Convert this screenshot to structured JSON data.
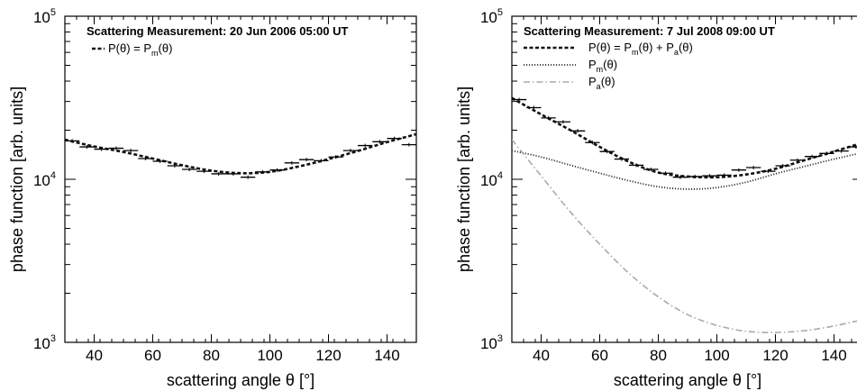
{
  "chart_data": [
    {
      "type": "scatter",
      "title": "Scattering Measurement: 20 Jun 2006 05:00 UT",
      "xlabel": "scattering angle θ [°]",
      "ylabel": "phase function [arb. units]",
      "xlim": [
        30,
        150
      ],
      "ylim": [
        1000,
        100000
      ],
      "yscale": "log",
      "xticks": [
        "40",
        "60",
        "80",
        "100",
        "120",
        "140"
      ],
      "yticks": [
        {
          "base": "10",
          "exp": "3"
        },
        {
          "base": "10",
          "exp": "4"
        },
        {
          "base": "10",
          "exp": "5"
        }
      ],
      "legend_position": "top-left",
      "grid": false,
      "points": {
        "x": [
          32.5,
          37.5,
          42.5,
          47.5,
          52.5,
          57.5,
          62.5,
          67.5,
          72.5,
          77.5,
          82.5,
          87.5,
          92.5,
          97.5,
          102.5,
          107.5,
          112.5,
          117.5,
          122.5,
          127.5,
          132.5,
          137.5,
          142.5,
          147.5
        ],
        "y": [
          17200,
          15800,
          15300,
          15500,
          15000,
          13400,
          12900,
          12100,
          11500,
          11200,
          10800,
          10800,
          10300,
          11100,
          11400,
          12600,
          13200,
          13000,
          13700,
          15000,
          16100,
          17000,
          17800,
          16300
        ]
      },
      "series": [
        {
          "legend_text": "P(θ) = P",
          "legend_sub": "m",
          "legend_suffix": "(θ)",
          "style": "dashed",
          "color": "#111111",
          "x": [
            30,
            40,
            50,
            60,
            70,
            80,
            90,
            100,
            110,
            120,
            130,
            140,
            150
          ],
          "y": [
            17500,
            15900,
            14700,
            13400,
            12200,
            11300,
            10900,
            11100,
            12000,
            13300,
            14900,
            16900,
            18900
          ]
        }
      ]
    },
    {
      "type": "scatter",
      "title": "Scattering Measurement: 7 Jul 2008 09:00 UT",
      "xlabel": "scattering angle θ [°]",
      "ylabel": "phase function [arb. units]",
      "xlim": [
        30,
        150
      ],
      "ylim": [
        1000,
        100000
      ],
      "yscale": "log",
      "xticks": [
        "40",
        "60",
        "80",
        "100",
        "120",
        "140"
      ],
      "yticks": [
        {
          "base": "10",
          "exp": "3"
        },
        {
          "base": "10",
          "exp": "4"
        },
        {
          "base": "10",
          "exp": "5"
        }
      ],
      "legend_position": "top-left",
      "grid": false,
      "points": {
        "x": [
          32.5,
          37.5,
          42.5,
          47.5,
          52.5,
          57.5,
          62.5,
          67.5,
          72.5,
          77.5,
          82.5,
          87.5,
          92.5,
          97.5,
          102.5,
          107.5,
          112.5,
          117.5,
          122.5,
          127.5,
          132.5,
          137.5,
          142.5,
          147.5
        ],
        "y": [
          30800,
          27500,
          23800,
          22500,
          19800,
          16800,
          14800,
          13300,
          12200,
          11500,
          10900,
          10300,
          10400,
          10500,
          10600,
          11400,
          11800,
          11200,
          12100,
          13100,
          13800,
          14400,
          14900,
          15800
        ]
      },
      "series": [
        {
          "legend_text": "P(θ) = P",
          "legend_sub": "m",
          "legend_suffix": "(θ) + P",
          "legend_sub2": "a",
          "legend_suffix2": "(θ)",
          "style": "dashed",
          "color": "#111111",
          "x": [
            30,
            40,
            50,
            60,
            70,
            80,
            90,
            100,
            110,
            120,
            130,
            140,
            150
          ],
          "y": [
            31500,
            25000,
            20000,
            15800,
            12800,
            11000,
            10400,
            10300,
            10700,
            11600,
            13100,
            14800,
            16800
          ]
        },
        {
          "legend_text": "P",
          "legend_sub": "m",
          "legend_suffix": "(θ)",
          "style": "dotted",
          "color": "#333333",
          "x": [
            30,
            40,
            50,
            60,
            70,
            80,
            90,
            100,
            110,
            120,
            130,
            140,
            150
          ],
          "y": [
            15000,
            13700,
            12200,
            10900,
            9800,
            9000,
            8700,
            8900,
            9600,
            10800,
            12000,
            13300,
            14600
          ]
        },
        {
          "legend_text": "P",
          "legend_sub": "a",
          "legend_suffix": "(θ)",
          "style": "dashdot",
          "color": "#aaaaaa",
          "x": [
            30,
            40,
            50,
            60,
            70,
            80,
            90,
            100,
            110,
            120,
            130,
            140,
            150
          ],
          "y": [
            17500,
            10500,
            6300,
            4000,
            2650,
            1900,
            1480,
            1270,
            1170,
            1150,
            1180,
            1260,
            1380
          ]
        }
      ]
    }
  ]
}
